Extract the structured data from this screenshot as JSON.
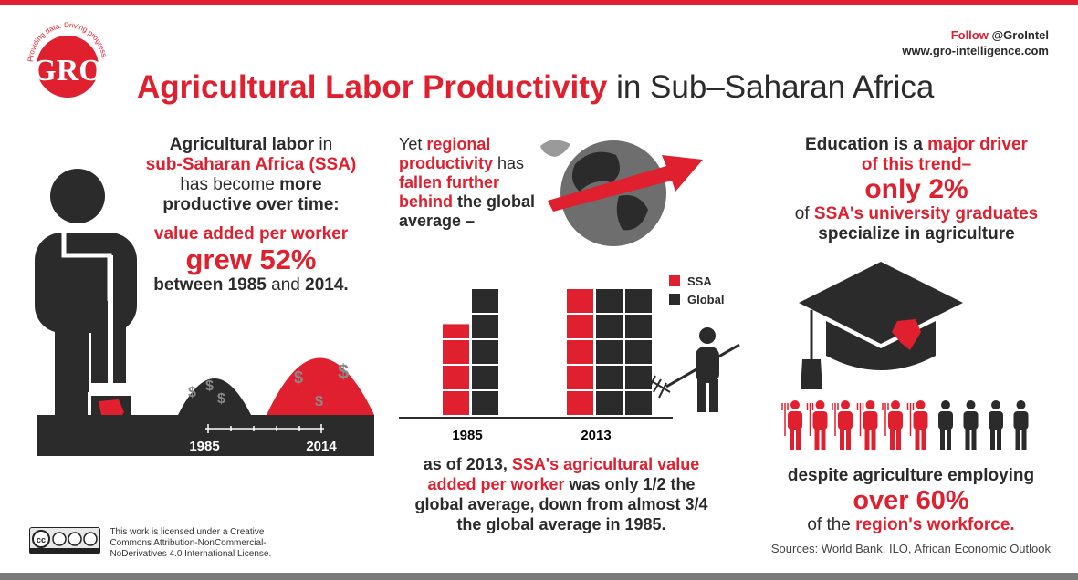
{
  "header": {
    "title_highlight": "Agricultural Labor Productivity",
    "title_rest": "in Sub–Saharan Africa",
    "follow_label": "Follow",
    "follow_handle": "@GroIntel",
    "website": "www.gro-intelligence.com",
    "logo_text": "GRO",
    "logo_tagline": "Providing data. Driving progress."
  },
  "left": {
    "line1_bold": "Agricultural labor",
    "line1_rest": " in",
    "line2": "sub-Saharan Africa (SSA)",
    "line3_pre": "has become ",
    "line3_bold": "more",
    "line4": "productive over time:",
    "line5": "value added per worker",
    "line6": "grew 52%",
    "line7_a": "between 1985",
    "line7_b": " and ",
    "line7_c": "2014."
  },
  "field": {
    "year_start": "1985",
    "year_end": "2014"
  },
  "middle": {
    "intro_pre": "Yet ",
    "intro_red": "regional productivity",
    "intro_mid": " has ",
    "intro_red2": "fallen further behind",
    "intro_post": " the global average –",
    "bottom_a": "as of 2013, ",
    "bottom_b": "SSA's agricultural value added per worker",
    "bottom_c": " was only 1/2 the global average, down from ",
    "bottom_d": "almost 3/4 the global average in 1985."
  },
  "chart_data": {
    "type": "bar",
    "categories": [
      "1985",
      "2013"
    ],
    "series": [
      {
        "name": "SSA",
        "values": [
          3.6,
          5
        ]
      },
      {
        "name": "Global",
        "values": [
          5,
          10
        ]
      }
    ],
    "legend": "top-right",
    "colors": {
      "SSA": "#e0202f",
      "Global": "#2b2b2b"
    }
  },
  "right": {
    "line1_bold": "Education",
    "line1_rest": " is a ",
    "line1_red": "major driver",
    "line2": "of this trend–",
    "big": "only 2%",
    "line3_pre": "of ",
    "line3_red": "SSA's university graduates",
    "line4": "specialize in agriculture",
    "bottom1": "despite agriculture employing",
    "bottom_big": "over 60%",
    "bottom3_pre": "of the ",
    "bottom3_red": "region's workforce."
  },
  "people": {
    "red_count": 6,
    "dark_count": 4
  },
  "footer": {
    "license": "This work is licensed under a Creative Commons Attribution-NonCommercial-NoDerivatives 4.0 International License.",
    "cc_badge": "cc BY ND NC",
    "sources": "Sources: World Bank, ILO, African Economic Outlook"
  },
  "colors": {
    "accent": "#e0202f",
    "dark": "#2b2b2b",
    "gray": "#7a7a7a"
  }
}
